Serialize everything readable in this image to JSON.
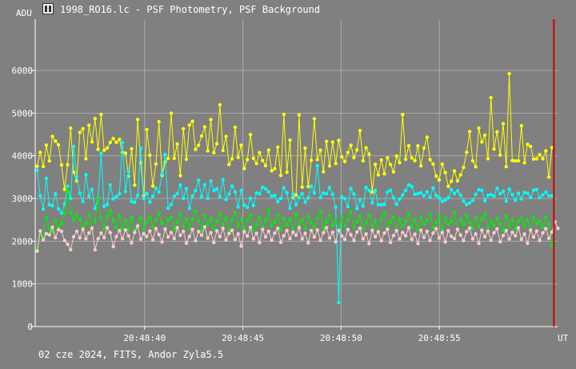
{
  "window": {
    "title": "1998_RO16.lc - PSF Photometry, PSF Background",
    "icon": "app-icon"
  },
  "footer": {
    "text": "02 cze 2024, FITS, Andor Zyla5.5"
  },
  "chart_data": {
    "type": "line",
    "ylabel": "ADU",
    "xlabel": "UT",
    "ylim": [
      0,
      7200
    ],
    "yticks": [
      0,
      1000,
      2000,
      3000,
      4000,
      5000,
      6000
    ],
    "ytick_labels": [
      "0",
      "1000",
      "2000",
      "3000",
      "4000",
      "5000",
      "6000"
    ],
    "xlim": [
      -5.57,
      21.02
    ],
    "xticks": [
      0,
      5,
      10,
      15
    ],
    "xtick_labels": [
      "20:48:40",
      "20:48:45",
      "20:48:50",
      "20:48:55"
    ],
    "grid": true,
    "marker_line_at": 20.83,
    "marker_line_color": "#cc0000",
    "background": "#808080",
    "series": [
      {
        "color": "#ffff00",
        "values": [
          3756,
          4082,
          3751,
          4251,
          3879,
          4455,
          4345,
          4257,
          3785,
          3216,
          3791,
          4648,
          3619,
          3409,
          4546,
          4635,
          3931,
          4718,
          4325,
          4871,
          4151,
          4970,
          4130,
          4182,
          4314,
          4405,
          4317,
          4384,
          4086,
          4064,
          3525,
          4164,
          3314,
          4850,
          3838,
          3066,
          4616,
          4014,
          3292,
          3807,
          4798,
          3539,
          3856,
          3940,
          4996,
          3941,
          4279,
          3537,
          4633,
          3919,
          4722,
          4809,
          4150,
          4248,
          4463,
          4678,
          4115,
          4850,
          4073,
          4283,
          5193,
          4125,
          4455,
          3795,
          3930,
          4671,
          3962,
          4248,
          3700,
          3911,
          4498,
          3939,
          3819,
          4074,
          3890,
          3768,
          4132,
          3648,
          3697,
          4203,
          3541,
          4970,
          3615,
          4367,
          3027,
          3083,
          4960,
          3269,
          4179,
          3281,
          3894,
          4870,
          3911,
          4133,
          3627,
          4337,
          3764,
          4322,
          3819,
          4361,
          3975,
          3867,
          4075,
          4247,
          3958,
          4139,
          4590,
          3884,
          4189,
          4040,
          3146,
          3802,
          3554,
          3904,
          3577,
          3955,
          3795,
          3624,
          3997,
          3840,
          4965,
          3918,
          4235,
          3950,
          3886,
          4233,
          3764,
          4184,
          4436,
          3911,
          3808,
          3525,
          3435,
          3807,
          3608,
          3283,
          3405,
          3645,
          3412,
          3554,
          3730,
          4081,
          4568,
          3884,
          3742,
          4649,
          4322,
          4485,
          3932,
          5364,
          4159,
          4564,
          4016,
          4751,
          3746,
          5923,
          3889,
          3884,
          3883,
          4705,
          3838,
          4270,
          4221,
          3922,
          3929,
          4028,
          3932,
          4116,
          3503,
          4193
        ]
      },
      {
        "color": "#00ffff",
        "values": [
          3661,
          3062,
          2752,
          3468,
          2858,
          2834,
          3108,
          2759,
          2661,
          2868,
          3286,
          3003,
          4221,
          3505,
          3124,
          2929,
          3558,
          3047,
          3214,
          2763,
          3019,
          4061,
          2819,
          2862,
          3319,
          2993,
          3044,
          3112,
          4312,
          3165,
          3638,
          2932,
          2910,
          3074,
          4179,
          2998,
          3119,
          2916,
          3053,
          3243,
          3149,
          3585,
          4032,
          2772,
          2857,
          3053,
          3112,
          3315,
          3001,
          3231,
          2774,
          3052,
          3186,
          3426,
          3043,
          3324,
          3006,
          3412,
          3186,
          3226,
          3040,
          3441,
          2975,
          3106,
          3292,
          3151,
          2802,
          3190,
          2846,
          2793,
          3003,
          2835,
          3127,
          3115,
          3264,
          3226,
          3157,
          3057,
          3072,
          2928,
          3004,
          3250,
          3134,
          2770,
          3113,
          2856,
          3021,
          3117,
          2915,
          3015,
          3288,
          3128,
          3766,
          3020,
          3127,
          3110,
          3255,
          3099,
          2795,
          562,
          3035,
          2997,
          2812,
          3231,
          3106,
          2766,
          2978,
          2820,
          3256,
          3190,
          2899,
          3187,
          2854,
          2854,
          2864,
          3151,
          3194,
          3019,
          2864,
          2987,
          3081,
          3189,
          3319,
          3281,
          3097,
          3114,
          3134,
          3066,
          3158,
          3029,
          3248,
          3071,
          3016,
          2931,
          2962,
          3015,
          3207,
          3117,
          3180,
          3078,
          2935,
          2857,
          2897,
          2953,
          3099,
          3206,
          3192,
          2949,
          3075,
          3090,
          3055,
          3239,
          3115,
          3168,
          2935,
          3222,
          3094,
          2960,
          3124,
          2989,
          3142,
          3120,
          3023,
          3195,
          3209,
          3022,
          3086,
          3152,
          3063,
          3068
        ]
      },
      {
        "color": "#00ee00",
        "values": [
          1830,
          2150,
          2085,
          2563,
          2295,
          2212,
          2484,
          2315,
          2416,
          2643,
          3211,
          2678,
          2485,
          2617,
          2508,
          2329,
          2413,
          2626,
          2289,
          2464,
          3009,
          2534,
          2287,
          2581,
          2706,
          2491,
          2317,
          2603,
          2296,
          2485,
          2270,
          2546,
          2263,
          2384,
          2540,
          2278,
          2466,
          2550,
          2334,
          2490,
          2645,
          2430,
          2294,
          2500,
          2563,
          2280,
          2441,
          2628,
          2354,
          2507,
          2293,
          2515,
          2706,
          2479,
          2247,
          2606,
          2389,
          2522,
          2292,
          2466,
          2638,
          2395,
          2540,
          2260,
          2502,
          2678,
          2354,
          2511,
          2287,
          2489,
          2603,
          2263,
          2397,
          2559,
          2306,
          2490,
          2728,
          2352,
          2445,
          2618,
          2260,
          2530,
          2383,
          2502,
          2274,
          2641,
          2381,
          2507,
          2289,
          2581,
          2425,
          2333,
          2537,
          2684,
          2305,
          2455,
          2611,
          2383,
          2493,
          2268,
          2563,
          2359,
          2509,
          2693,
          2320,
          2462,
          2585,
          2286,
          2436,
          2610,
          2359,
          2477,
          2229,
          2525,
          2666,
          2321,
          2453,
          2574,
          2269,
          2509,
          2350,
          2463,
          2643,
          2334,
          2501,
          2263,
          2553,
          2396,
          2480,
          2625,
          2318,
          2436,
          2583,
          2278,
          2522,
          2397,
          2465,
          2673,
          2271,
          2508,
          2389,
          2594,
          2436,
          2305,
          2552,
          2347,
          2521,
          2638,
          2297,
          2470,
          2358,
          2538,
          2414,
          2252,
          2592,
          2347,
          2493,
          2291,
          2456,
          2544,
          2363,
          2498,
          2243,
          2557,
          2408,
          2478,
          2331,
          2559,
          2401,
          1900
        ]
      },
      {
        "color": "#ffcccc",
        "values": [
          1769,
          2240,
          2032,
          2177,
          2149,
          2327,
          2082,
          2271,
          2234,
          2017,
          1930,
          1801,
          2104,
          2232,
          2078,
          2279,
          2057,
          2191,
          2306,
          1799,
          2057,
          2191,
          2084,
          2316,
          2199,
          1874,
          2110,
          2246,
          2058,
          2263,
          2125,
          1959,
          2205,
          2356,
          2049,
          2175,
          2111,
          2239,
          2036,
          2295,
          2154,
          1980,
          2283,
          2097,
          2202,
          2060,
          2315,
          2139,
          2233,
          1953,
          2110,
          2275,
          2012,
          2226,
          2141,
          2335,
          2071,
          2199,
          1970,
          2243,
          2108,
          2302,
          2030,
          2181,
          2256,
          2042,
          2170,
          1885,
          2224,
          2119,
          2323,
          2057,
          2186,
          1964,
          2279,
          2100,
          2233,
          2023,
          2190,
          2303,
          1972,
          2126,
          2251,
          2061,
          2212,
          2142,
          2317,
          2054,
          2185,
          1957,
          2251,
          2098,
          2264,
          2020,
          2200,
          2315,
          2075,
          2207,
          1984,
          2251,
          2122,
          2046,
          2275,
          2148,
          2018,
          2216,
          2304,
          2057,
          2172,
          1943,
          2256,
          2103,
          2224,
          2012,
          2190,
          2279,
          1970,
          2132,
          2246,
          2052,
          2203,
          2126,
          2316,
          2043,
          2168,
          1945,
          2257,
          2088,
          2234,
          2017,
          2191,
          2293,
          2071,
          2206,
          1983,
          2247,
          2114,
          2060,
          2280,
          2143,
          2015,
          2220,
          2308,
          2054,
          2172,
          1948,
          2257,
          2101,
          2234,
          2022,
          2198,
          2287,
          1988,
          2131,
          2252,
          2050,
          2208,
          2127,
          2314,
          2046,
          2170,
          1950,
          2261,
          2097,
          2239,
          2018,
          2193,
          2295,
          2068,
          2213,
          2455,
          2300
        ]
      }
    ]
  }
}
